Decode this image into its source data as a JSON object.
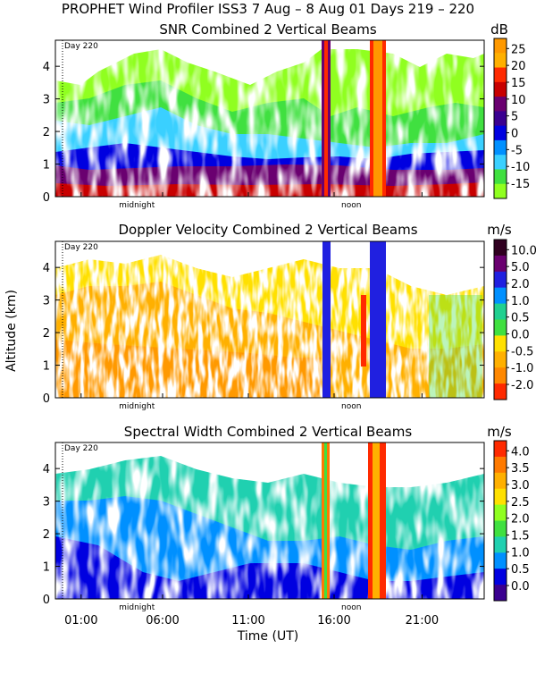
{
  "title": "PROPHET Wind Profiler ISS3   7 Aug –  8 Aug 01 Days 219 – 220",
  "ylabel": "Altitude (km)",
  "xlabel": "Time (UT)",
  "chart_data": [
    {
      "type": "heatmap",
      "title": "SNR Combined 2 Vertical Beams",
      "unit": "dB",
      "colorbar_labels": [
        "25",
        "20",
        "15",
        "10",
        "5",
        "0",
        "-5",
        "-10",
        "-15"
      ],
      "colorbar_colors": [
        "#ff9900",
        "#ffb000",
        "#ff2a00",
        "#c80000",
        "#6a0070",
        "#3a0090",
        "#0000e0",
        "#0090ff",
        "#3ad0ff",
        "#40e040",
        "#90ff20"
      ],
      "day_marker": "Day 220",
      "midnight_label": "midnight",
      "noon_label": "noon",
      "ylim": [
        0,
        4.8
      ],
      "yticks": [
        "0",
        "1",
        "2",
        "3",
        "4"
      ]
    },
    {
      "type": "heatmap",
      "title": "Doppler Velocity Combined 2 Vertical Beams",
      "unit": "m/s",
      "colorbar_labels": [
        "10.0",
        "5.0",
        "2.0",
        "1.0",
        "0.5",
        "0.0",
        "-0.5",
        "-1.0",
        "-2.0"
      ],
      "colorbar_colors": [
        "#300020",
        "#6a0070",
        "#2020e0",
        "#0090ff",
        "#20d090",
        "#40e040",
        "#ffe000",
        "#ffb000",
        "#ff8800",
        "#ff2a00"
      ],
      "day_marker": "Day 220",
      "midnight_label": "midnight",
      "noon_label": "noon",
      "ylim": [
        0,
        4.8
      ],
      "yticks": [
        "0",
        "1",
        "2",
        "3",
        "4"
      ]
    },
    {
      "type": "heatmap",
      "title": "Spectral Width Combined 2 Vertical Beams",
      "unit": "m/s",
      "colorbar_labels": [
        "4.0",
        "3.5",
        "3.0",
        "2.5",
        "2.0",
        "1.5",
        "1.0",
        "0.5",
        "0.0"
      ],
      "colorbar_colors": [
        "#ff2a00",
        "#ff7a00",
        "#ffb000",
        "#ffe000",
        "#90ff20",
        "#40e040",
        "#20d0b0",
        "#0090ff",
        "#0000e0",
        "#3a0090"
      ],
      "day_marker": "Day 220",
      "midnight_label": "midnight",
      "noon_label": "noon",
      "ylim": [
        0,
        4.8
      ],
      "yticks": [
        "0",
        "1",
        "2",
        "3",
        "4"
      ],
      "xticks": [
        "01:00",
        "06:00",
        "11:00",
        "16:00",
        "21:00"
      ]
    }
  ]
}
